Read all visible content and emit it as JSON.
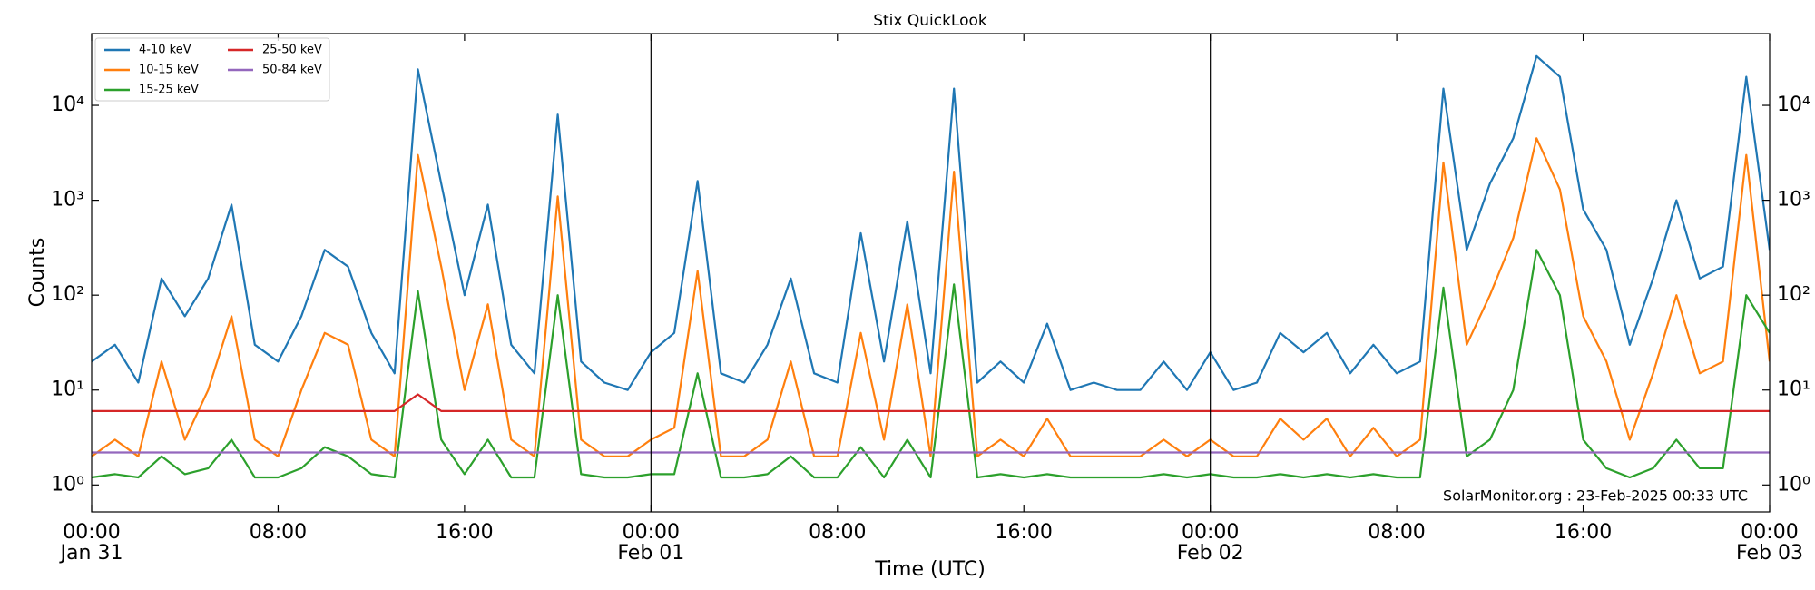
{
  "chart_data": {
    "type": "line",
    "title": "Stix QuickLook",
    "xlabel": "Time (UTC)",
    "ylabel": "Counts",
    "annotation": "SolarMonitor.org : 23-Feb-2025 00:33 UTC",
    "yscale": "log",
    "legend": "upper left",
    "xlim": [
      0,
      72
    ],
    "ylim": [
      0.52,
      57000
    ],
    "xticks": [
      {
        "value": 0,
        "label": "00:00",
        "date": "Jan 31"
      },
      {
        "value": 8,
        "label": "08:00"
      },
      {
        "value": 16,
        "label": "16:00"
      },
      {
        "value": 24,
        "label": "00:00",
        "date": "Feb 01"
      },
      {
        "value": 32,
        "label": "08:00"
      },
      {
        "value": 40,
        "label": "16:00"
      },
      {
        "value": 48,
        "label": "00:00",
        "date": "Feb 02"
      },
      {
        "value": 56,
        "label": "08:00"
      },
      {
        "value": 64,
        "label": "16:00"
      },
      {
        "value": 72,
        "label": "00:00",
        "date": "Feb 03"
      }
    ],
    "yticks": [
      {
        "value": 1,
        "label": "10⁰"
      },
      {
        "value": 10,
        "label": "10¹"
      },
      {
        "value": 100,
        "label": "10²"
      },
      {
        "value": 1000,
        "label": "10³"
      },
      {
        "value": 10000,
        "label": "10⁴"
      }
    ],
    "x": [
      0,
      1,
      2,
      3,
      4,
      5,
      6,
      7,
      8,
      9,
      10,
      11,
      12,
      13,
      14,
      15,
      16,
      17,
      18,
      19,
      20,
      21,
      22,
      23,
      24,
      25,
      26,
      27,
      28,
      29,
      30,
      31,
      32,
      33,
      34,
      35,
      36,
      37,
      38,
      39,
      40,
      41,
      42,
      43,
      44,
      45,
      46,
      47,
      48,
      49,
      50,
      51,
      52,
      53,
      54,
      55,
      56,
      57,
      58,
      59,
      60,
      61,
      62,
      63,
      64,
      65,
      66,
      67,
      68,
      69,
      70,
      71,
      72
    ],
    "series": [
      {
        "name": "4-10 keV",
        "color": "#1f77b4",
        "values": [
          20,
          30,
          12,
          150,
          60,
          150,
          900,
          30,
          20,
          60,
          300,
          200,
          40,
          15,
          24000,
          1500,
          100,
          900,
          30,
          15,
          8000,
          20,
          12,
          10,
          25,
          40,
          1600,
          15,
          12,
          30,
          150,
          15,
          12,
          450,
          20,
          600,
          15,
          15000,
          12,
          20,
          12,
          50,
          10,
          12,
          10,
          10,
          20,
          10,
          25,
          10,
          12,
          40,
          25,
          40,
          15,
          30,
          15,
          20,
          15000,
          300,
          1500,
          4500,
          33000,
          20000,
          800,
          300,
          30,
          150,
          1000,
          150,
          200,
          20000,
          300
        ]
      },
      {
        "name": "10-15 keV",
        "color": "#ff7f0e",
        "values": [
          2,
          3,
          2,
          20,
          3,
          10,
          60,
          3,
          2,
          10,
          40,
          30,
          3,
          2,
          3000,
          200,
          10,
          80,
          3,
          2,
          1100,
          3,
          2,
          2,
          3,
          4,
          180,
          2,
          2,
          3,
          20,
          2,
          2,
          40,
          3,
          80,
          2,
          2000,
          2,
          3,
          2,
          5,
          2,
          2,
          2,
          2,
          3,
          2,
          3,
          2,
          2,
          5,
          3,
          5,
          2,
          4,
          2,
          3,
          2500,
          30,
          100,
          400,
          4500,
          1300,
          60,
          20,
          3,
          15,
          100,
          15,
          20,
          3000,
          20
        ]
      },
      {
        "name": "15-25 keV",
        "color": "#2ca02c",
        "values": [
          1.2,
          1.3,
          1.2,
          2,
          1.3,
          1.5,
          3,
          1.2,
          1.2,
          1.5,
          2.5,
          2,
          1.3,
          1.2,
          110,
          3,
          1.3,
          3,
          1.2,
          1.2,
          100,
          1.3,
          1.2,
          1.2,
          1.3,
          1.3,
          15,
          1.2,
          1.2,
          1.3,
          2,
          1.2,
          1.2,
          2.5,
          1.2,
          3,
          1.2,
          130,
          1.2,
          1.3,
          1.2,
          1.3,
          1.2,
          1.2,
          1.2,
          1.2,
          1.3,
          1.2,
          1.3,
          1.2,
          1.2,
          1.3,
          1.2,
          1.3,
          1.2,
          1.3,
          1.2,
          1.2,
          120,
          2,
          3,
          10,
          300,
          100,
          3,
          1.5,
          1.2,
          1.5,
          3,
          1.5,
          1.5,
          100,
          40
        ]
      },
      {
        "name": "25-50 keV",
        "color": "#d62728",
        "values": [
          6,
          6,
          6,
          6,
          6,
          6,
          6,
          6,
          6,
          6,
          6,
          6,
          6,
          6,
          9,
          6,
          6,
          6,
          6,
          6,
          6,
          6,
          6,
          6,
          6,
          6,
          6,
          6,
          6,
          6,
          6,
          6,
          6,
          6,
          6,
          6,
          6,
          6,
          6,
          6,
          6,
          6,
          6,
          6,
          6,
          6,
          6,
          6,
          6,
          6,
          6,
          6,
          6,
          6,
          6,
          6,
          6,
          6,
          6,
          6,
          6,
          6,
          6,
          6,
          6,
          6,
          6,
          6,
          6,
          6,
          6,
          6,
          6
        ]
      },
      {
        "name": "50-84 keV",
        "color": "#9467bd",
        "values": [
          2.2,
          2.2,
          2.2,
          2.2,
          2.2,
          2.2,
          2.2,
          2.2,
          2.2,
          2.2,
          2.2,
          2.2,
          2.2,
          2.2,
          2.2,
          2.2,
          2.2,
          2.2,
          2.2,
          2.2,
          2.2,
          2.2,
          2.2,
          2.2,
          2.2,
          2.2,
          2.2,
          2.2,
          2.2,
          2.2,
          2.2,
          2.2,
          2.2,
          2.2,
          2.2,
          2.2,
          2.2,
          2.2,
          2.2,
          2.2,
          2.2,
          2.2,
          2.2,
          2.2,
          2.2,
          2.2,
          2.2,
          2.2,
          2.2,
          2.2,
          2.2,
          2.2,
          2.2,
          2.2,
          2.2,
          2.2,
          2.2,
          2.2,
          2.2,
          2.2,
          2.2,
          2.2,
          2.2,
          2.2,
          2.2,
          2.2,
          2.2,
          2.2,
          2.2,
          2.2,
          2.2,
          2.2,
          2.2
        ]
      }
    ]
  }
}
